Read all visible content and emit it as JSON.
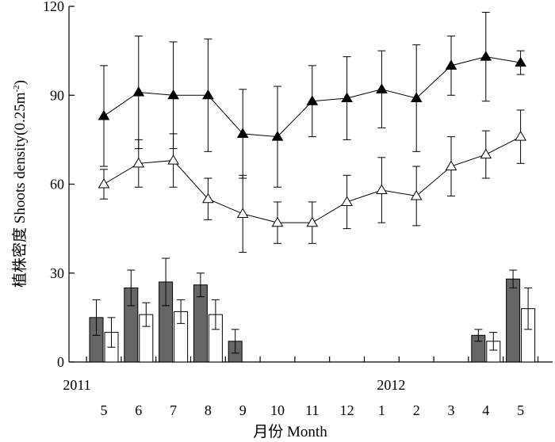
{
  "chart_data": {
    "type": "line+bar",
    "ylabel": "植株密度 Shoots density(0.25m⁻²)",
    "ylabel_cn": "植株密度 Shoots density(0.25m",
    "ylabel_sup": "-2",
    "ylabel_close": ")",
    "xlabel": "月份 Month",
    "ylim": [
      0,
      120
    ],
    "yticks": [
      0,
      30,
      60,
      90,
      120
    ],
    "categories": [
      "5",
      "6",
      "7",
      "8",
      "9",
      "10",
      "11",
      "12",
      "1",
      "2",
      "3",
      "4",
      "5"
    ],
    "year_labels": [
      {
        "text": "2011",
        "at_index": -0.5
      },
      {
        "text": "2012",
        "at_index": 8
      }
    ],
    "series": [
      {
        "name": "filled-triangle-line",
        "kind": "line",
        "marker": "filled-triangle",
        "values": [
          83,
          91,
          90,
          90,
          77,
          76,
          88,
          89,
          92,
          89,
          100,
          103,
          101
        ],
        "errors": [
          17,
          19,
          18,
          19,
          15,
          17,
          12,
          14,
          13,
          18,
          10,
          15,
          4
        ]
      },
      {
        "name": "open-triangle-line",
        "kind": "line",
        "marker": "open-triangle",
        "values": [
          60,
          67,
          68,
          55,
          50,
          47,
          47,
          54,
          58,
          56,
          66,
          70,
          76
        ],
        "errors": [
          5,
          8,
          9,
          7,
          13,
          7,
          7,
          9,
          11,
          10,
          10,
          8,
          9
        ]
      },
      {
        "name": "dark-bars",
        "kind": "bar",
        "color": "#666666",
        "values": [
          15,
          25,
          27,
          26,
          7,
          null,
          null,
          null,
          null,
          null,
          null,
          9,
          28
        ],
        "errors": [
          6,
          6,
          8,
          4,
          4,
          null,
          null,
          null,
          null,
          null,
          null,
          2,
          3
        ]
      },
      {
        "name": "white-bars",
        "kind": "bar",
        "color": "#ffffff",
        "values": [
          10,
          16,
          17,
          16,
          null,
          null,
          null,
          null,
          null,
          null,
          null,
          7,
          18
        ],
        "errors": [
          5,
          4,
          4,
          5,
          null,
          null,
          null,
          null,
          null,
          null,
          null,
          3,
          7
        ]
      }
    ]
  }
}
